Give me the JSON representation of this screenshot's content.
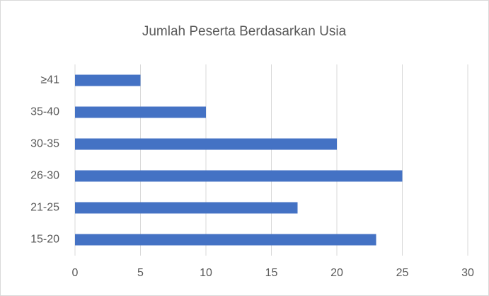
{
  "chart_data": {
    "type": "hbar",
    "title": "Jumlah Peserta Berdasarkan Usia",
    "categories": [
      "15-20",
      "21-25",
      "26-30",
      "30-35",
      "35-40",
      "≥41"
    ],
    "values": [
      23,
      17,
      25,
      20,
      10,
      5
    ],
    "color": "#4472c4",
    "xlim": [
      0,
      30
    ],
    "xticks": [
      0,
      5,
      10,
      15,
      20,
      25,
      30
    ],
    "grid": true
  }
}
